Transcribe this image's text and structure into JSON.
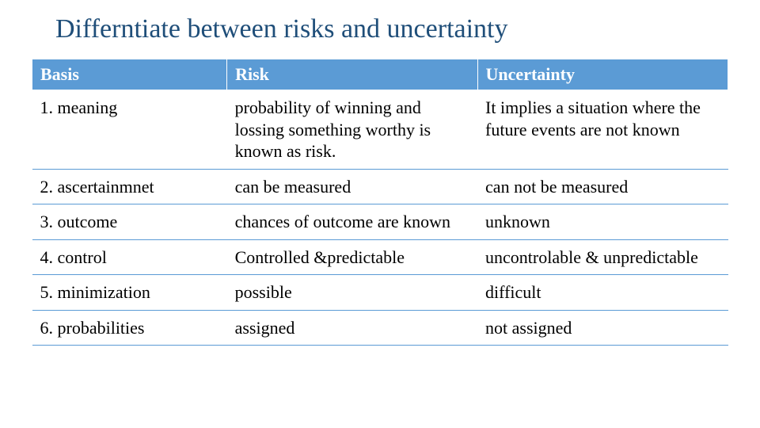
{
  "title": "Differntiate between risks and uncertainty",
  "table": {
    "header_bg": "#5b9bd5",
    "header_fg": "#ffffff",
    "row_border_color": "#5b9bd5",
    "title_color": "#1f4e79",
    "font_family": "Times New Roman",
    "title_fontsize": 34,
    "cell_fontsize": 22,
    "column_widths_pct": [
      28,
      36,
      36
    ],
    "columns": [
      "Basis",
      "Risk",
      "Uncertainty"
    ],
    "rows": [
      [
        "1. meaning",
        "probability of winning and lossing something worthy is known as risk.",
        "It implies a situation where the future events are not known"
      ],
      [
        "2. ascertainmnet",
        "can be measured",
        "can not be measured"
      ],
      [
        "3. outcome",
        " chances of outcome are known",
        "unknown"
      ],
      [
        "4. control",
        "Controlled &predictable",
        "uncontrolable & unpredictable"
      ],
      [
        "5. minimization",
        "possible",
        "difficult"
      ],
      [
        "6. probabilities",
        "assigned",
        "not assigned"
      ]
    ]
  }
}
